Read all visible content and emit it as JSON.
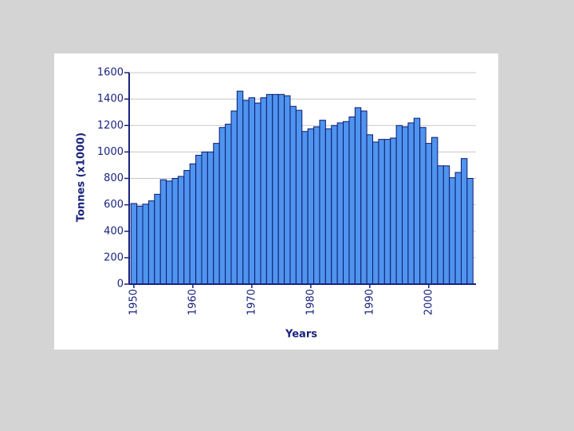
{
  "chart_data": {
    "type": "bar",
    "ylabel": "Tonnes (x1000)",
    "xlabel": "Years",
    "x": [
      1950,
      1951,
      1952,
      1953,
      1954,
      1955,
      1956,
      1957,
      1958,
      1959,
      1960,
      1961,
      1962,
      1963,
      1964,
      1965,
      1966,
      1967,
      1968,
      1969,
      1970,
      1971,
      1972,
      1973,
      1974,
      1975,
      1976,
      1977,
      1978,
      1979,
      1980,
      1981,
      1982,
      1983,
      1984,
      1985,
      1986,
      1987,
      1988,
      1989,
      1990,
      1991,
      1992,
      1993,
      1994,
      1995,
      1996,
      1997,
      1998,
      1999,
      2000,
      2001,
      2002,
      2003,
      2004,
      2005,
      2006,
      2007
    ],
    "values": [
      610,
      590,
      605,
      630,
      680,
      790,
      780,
      800,
      815,
      860,
      910,
      975,
      1000,
      1000,
      1065,
      1185,
      1210,
      1310,
      1460,
      1390,
      1410,
      1370,
      1410,
      1435,
      1435,
      1435,
      1425,
      1345,
      1315,
      1155,
      1175,
      1190,
      1240,
      1175,
      1200,
      1220,
      1230,
      1265,
      1335,
      1310,
      1130,
      1075,
      1095,
      1095,
      1105,
      1200,
      1190,
      1220,
      1255,
      1185,
      1065,
      1110,
      895,
      895,
      805,
      845,
      950,
      800
    ],
    "color": "#4f94ee",
    "xlim": [
      1949.2,
      2008
    ],
    "xticks": [
      1950,
      1960,
      1970,
      1980,
      1990,
      2000
    ],
    "ylim": [
      0,
      1600
    ],
    "yticks": [
      0,
      200,
      400,
      600,
      800,
      1000,
      1200,
      1400,
      1600
    ],
    "grid": true
  }
}
